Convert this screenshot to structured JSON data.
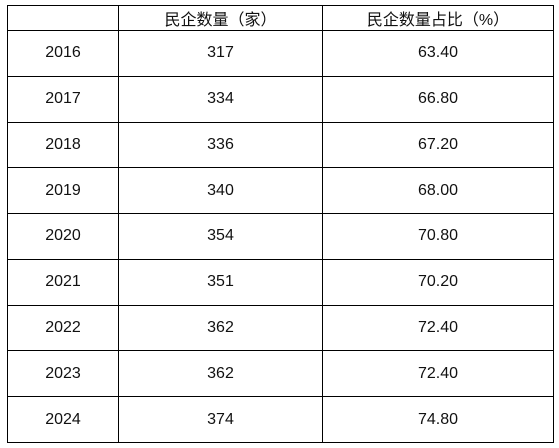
{
  "table": {
    "header": [
      "民企数量（家）",
      "民企数量占比（%）"
    ],
    "rows": [
      [
        "2016",
        "317",
        "63.40"
      ],
      [
        "2017",
        "334",
        "66.80"
      ],
      [
        "2018",
        "336",
        "67.20"
      ],
      [
        "2019",
        "340",
        "68.00"
      ],
      [
        "2020",
        "354",
        "70.80"
      ],
      [
        "2021",
        "351",
        "70.20"
      ],
      [
        "2022",
        "362",
        "72.40"
      ],
      [
        "2023",
        "362",
        "72.40"
      ],
      [
        "2024",
        "374",
        "74.80"
      ]
    ]
  }
}
